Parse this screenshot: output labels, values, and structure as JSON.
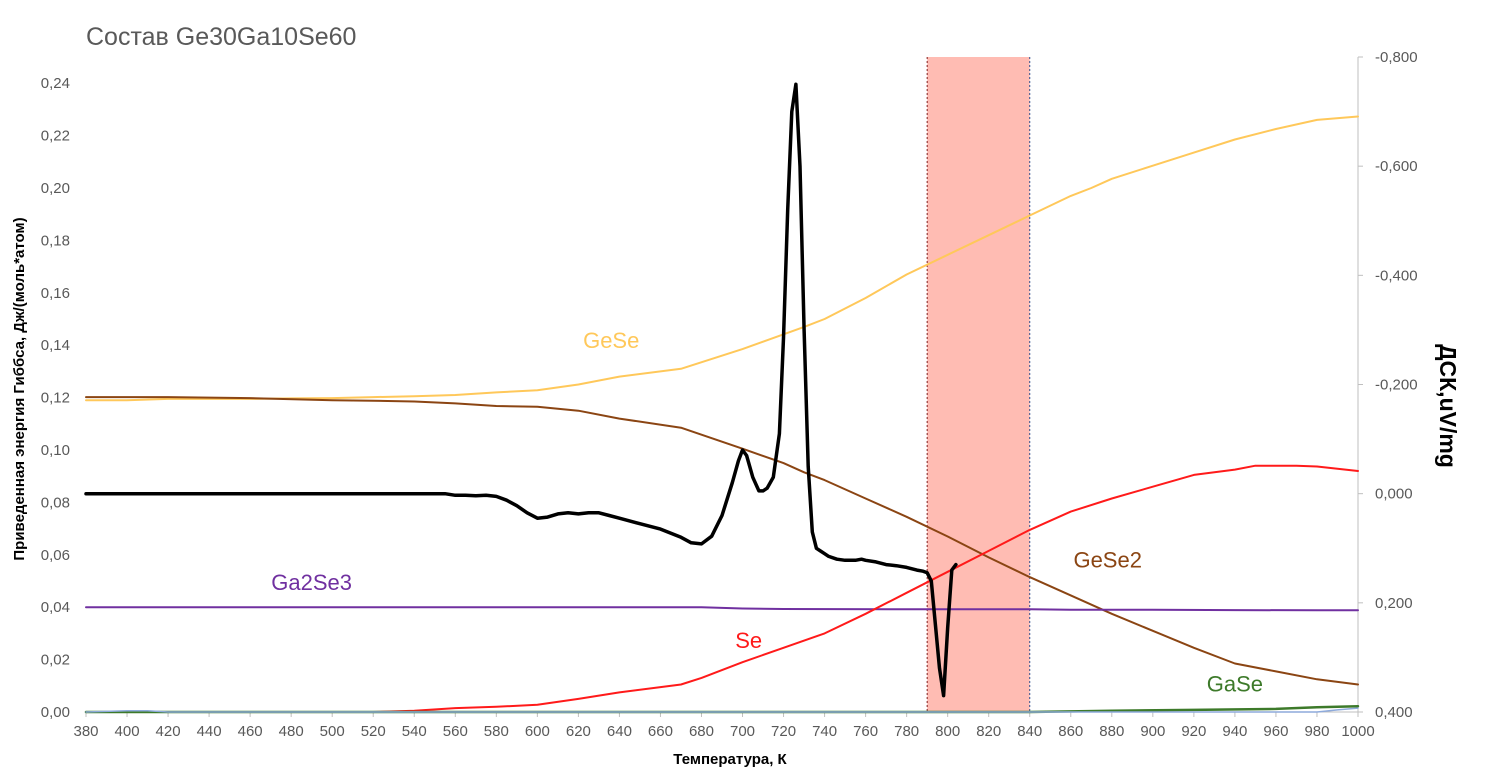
{
  "chart_data": {
    "type": "line",
    "title": "Состав Ge30Ga10Se60",
    "xlabel": "Температура, К",
    "ylabel": "Приведенная энергия Гиббса, Дж/(моль*атом)",
    "y2label": "ДСК,uV/mg",
    "xlim": [
      380,
      1000
    ],
    "ylim": [
      0,
      0.25
    ],
    "y2lim": [
      -0.8,
      0.4
    ],
    "y2_reversed": true,
    "x_ticks": [
      "380",
      "400",
      "420",
      "440",
      "460",
      "480",
      "500",
      "520",
      "540",
      "560",
      "580",
      "600",
      "620",
      "640",
      "660",
      "680",
      "700",
      "720",
      "740",
      "760",
      "780",
      "800",
      "820",
      "840",
      "860",
      "880",
      "900",
      "920",
      "940",
      "960",
      "980",
      "1000"
    ],
    "y_ticks": [
      "0,00",
      "0,02",
      "0,04",
      "0,06",
      "0,08",
      "0,10",
      "0,12",
      "0,14",
      "0,16",
      "0,18",
      "0,20",
      "0,22",
      "0,24"
    ],
    "y2_ticks": [
      "-0,800",
      "-0,600",
      "-0,400",
      "-0,200",
      "0,000",
      "0,200",
      "0,400"
    ],
    "grid": false,
    "highlight_band": {
      "from": 790,
      "to": 840,
      "color": "#ffbcb3"
    },
    "series": [
      {
        "name": "GeSe",
        "color": "#ffc85a",
        "axis": "left",
        "x": [
          380,
          400,
          420,
          440,
          460,
          480,
          500,
          520,
          540,
          560,
          580,
          600,
          620,
          640,
          670,
          700,
          730,
          740,
          760,
          780,
          800,
          820,
          840,
          860,
          870,
          880,
          900,
          920,
          940,
          960,
          980,
          1000
        ],
        "y": [
          0.119,
          0.119,
          0.1195,
          0.1195,
          0.1195,
          0.1197,
          0.1198,
          0.1202,
          0.1205,
          0.121,
          0.122,
          0.1228,
          0.125,
          0.128,
          0.131,
          0.1385,
          0.147,
          0.15,
          0.158,
          0.167,
          0.1745,
          0.182,
          0.1895,
          0.197,
          0.2,
          0.2035,
          0.2085,
          0.2135,
          0.2185,
          0.2225,
          0.226,
          0.2273
        ]
      },
      {
        "name": "GeSe2",
        "color": "#8b4513",
        "axis": "left",
        "x": [
          380,
          420,
          460,
          500,
          520,
          540,
          560,
          580,
          600,
          620,
          640,
          670,
          700,
          720,
          730,
          740,
          760,
          780,
          800,
          820,
          840,
          860,
          880,
          900,
          920,
          940,
          960,
          980,
          1000
        ],
        "y": [
          0.1202,
          0.1202,
          0.1198,
          0.119,
          0.1188,
          0.1185,
          0.1178,
          0.1168,
          0.1165,
          0.115,
          0.112,
          0.1085,
          0.1005,
          0.095,
          0.0915,
          0.0885,
          0.0815,
          0.0745,
          0.067,
          0.059,
          0.0515,
          0.0445,
          0.0375,
          0.031,
          0.0245,
          0.0185,
          0.0155,
          0.0125,
          0.0105
        ]
      },
      {
        "name": "Ga2Se3",
        "color": "#7030a0",
        "axis": "left",
        "x": [
          380,
          500,
          600,
          680,
          700,
          720,
          800,
          840,
          860,
          900,
          940,
          980,
          1000
        ],
        "y": [
          0.04,
          0.04,
          0.04,
          0.04,
          0.0395,
          0.0393,
          0.0392,
          0.0392,
          0.039,
          0.039,
          0.0389,
          0.0388,
          0.0388
        ]
      },
      {
        "name": "Se",
        "color": "#ff1a1a",
        "axis": "left",
        "x": [
          380,
          460,
          480,
          520,
          540,
          560,
          580,
          600,
          620,
          640,
          660,
          670,
          680,
          700,
          720,
          740,
          760,
          780,
          800,
          820,
          840,
          860,
          880,
          900,
          920,
          930,
          940,
          950,
          960,
          970,
          980,
          1000
        ],
        "y": [
          0,
          0,
          0,
          0,
          0.0005,
          0.0015,
          0.002,
          0.0028,
          0.005,
          0.0075,
          0.0095,
          0.0105,
          0.013,
          0.019,
          0.0245,
          0.03,
          0.0375,
          0.0455,
          0.0535,
          0.0615,
          0.0695,
          0.0765,
          0.0815,
          0.086,
          0.0905,
          0.0915,
          0.0925,
          0.094,
          0.094,
          0.094,
          0.0937,
          0.092
        ]
      },
      {
        "name": "GaSe",
        "color": "#3d7a2a",
        "axis": "left",
        "x": [
          380,
          700,
          780,
          820,
          840,
          880,
          920,
          960,
          980,
          1000
        ],
        "y": [
          0,
          0,
          0,
          0,
          0,
          0.0005,
          0.0008,
          0.0012,
          0.0018,
          0.0022
        ]
      },
      {
        "name": "",
        "color": "#8eaadb",
        "axis": "left",
        "x": [
          380,
          400,
          410,
          420,
          480,
          720,
          840,
          900,
          960,
          980,
          990,
          1000
        ],
        "y": [
          0,
          0.0005,
          0.0005,
          0,
          0,
          0,
          0,
          0,
          0,
          0,
          0.0008,
          0.0015
        ]
      },
      {
        "name": "",
        "color": "#000000",
        "axis": "right",
        "x": [
          380,
          440,
          500,
          550,
          555,
          560,
          565,
          570,
          575,
          580,
          585,
          590,
          595,
          600,
          605,
          610,
          615,
          620,
          625,
          630,
          635,
          640,
          650,
          660,
          670,
          675,
          680,
          685,
          690,
          695,
          698,
          700,
          702,
          705,
          708,
          710,
          712,
          715,
          718,
          720,
          722,
          724,
          726,
          728,
          730,
          732,
          734,
          736,
          738,
          740,
          742,
          746,
          750,
          755,
          758,
          760,
          765,
          770,
          775,
          780,
          785,
          788,
          790,
          792,
          794,
          796,
          798,
          800,
          802,
          804
        ],
        "y": [
          0.0,
          0.0,
          0.0,
          0.0,
          0.0,
          0.003,
          0.003,
          0.004,
          0.003,
          0.005,
          0.012,
          0.022,
          0.035,
          0.045,
          0.043,
          0.037,
          0.035,
          0.037,
          0.035,
          0.035,
          0.04,
          0.045,
          0.055,
          0.065,
          0.08,
          0.09,
          0.092,
          0.078,
          0.04,
          -0.02,
          -0.06,
          -0.08,
          -0.07,
          -0.03,
          -0.005,
          -0.005,
          -0.01,
          -0.03,
          -0.11,
          -0.285,
          -0.52,
          -0.7,
          -0.75,
          -0.6,
          -0.3,
          -0.05,
          0.07,
          0.1,
          0.105,
          0.11,
          0.115,
          0.12,
          0.122,
          0.122,
          0.12,
          0.122,
          0.125,
          0.13,
          0.132,
          0.135,
          0.14,
          0.142,
          0.145,
          0.16,
          0.24,
          0.32,
          0.37,
          0.245,
          0.14,
          0.13
        ]
      }
    ],
    "labels": [
      {
        "text": "GeSe",
        "x": 636,
        "y": 0.139,
        "color": "#ffc85a"
      },
      {
        "text": "GeSe2",
        "x": 878,
        "y": 0.0552,
        "color": "#8b4513"
      },
      {
        "text": "Ga2Se3",
        "x": 490,
        "y": 0.0465,
        "color": "#7030a0"
      },
      {
        "text": "Se",
        "x": 703,
        "y": 0.0245,
        "color": "#ff1a1a"
      },
      {
        "text": "GaSe",
        "x": 940,
        "y": 0.0078,
        "color": "#3d7a2a"
      }
    ]
  }
}
